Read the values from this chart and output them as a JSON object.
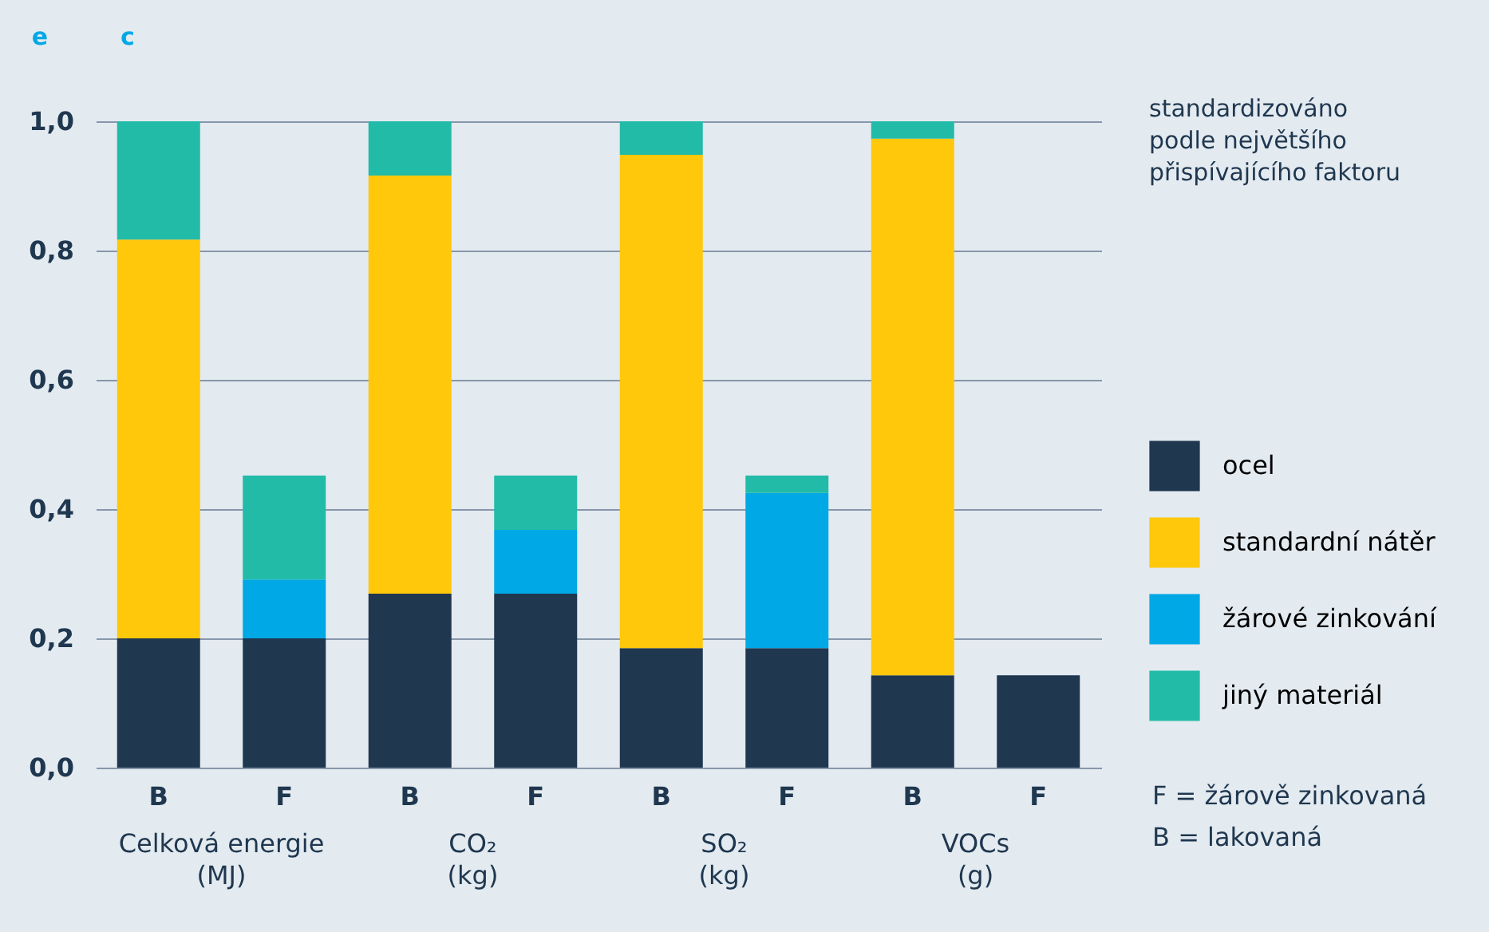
{
  "chart_data": {
    "type": "bar",
    "stacked": true,
    "categories": [
      "B",
      "F",
      "B",
      "F",
      "B",
      "F",
      "B",
      "F"
    ],
    "series": [
      {
        "name": "ocel",
        "color": "#1f374f",
        "values": [
          0.2,
          0.2,
          0.269,
          0.269,
          0.185,
          0.185,
          0.143,
          0.143
        ]
      },
      {
        "name": "standardní nátěr",
        "color": "#ffc80a",
        "values": [
          0.617,
          null,
          0.647,
          null,
          0.763,
          null,
          0.83,
          null
        ]
      },
      {
        "name": "žárové zinkování",
        "color": "#00a8e6",
        "values": [
          null,
          0.091,
          null,
          0.099,
          null,
          0.24,
          null,
          null
        ]
      },
      {
        "name": "jiný materiál",
        "color": "#22bba7",
        "values": [
          0.183,
          0.161,
          0.084,
          0.084,
          0.052,
          0.027,
          0.027,
          null
        ]
      }
    ],
    "ylim": [
      0,
      1
    ],
    "yticks": [
      {
        "value": 0,
        "label": "0,0"
      },
      {
        "value": 0.2,
        "label": "0,2"
      },
      {
        "value": 0.4,
        "label": "0,4"
      },
      {
        "value": 0.6,
        "label": "0,6"
      },
      {
        "value": 0.8,
        "label": "0,8"
      },
      {
        "value": 1,
        "label": "1,0"
      }
    ],
    "grid": "y",
    "legend": "right",
    "annotations": [
      "e",
      "c",
      "standardizováno\npodle největšího\npřispívajícího faktoru",
      "Celková energie\n(MJ)",
      "CO₂\n(kg)",
      "SO₂\n(kg)",
      "VOCs\n(g)",
      "F = žárově zinkovaná",
      "B = lakovaná"
    ]
  }
}
